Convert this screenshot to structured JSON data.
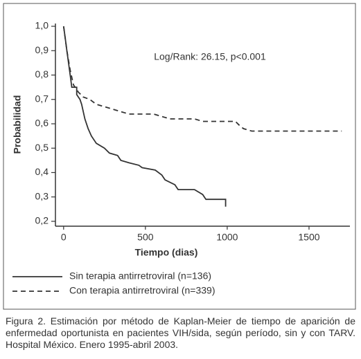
{
  "chart_data": {
    "type": "line",
    "annotation": "Log/Rank: 26.15, p<0.001",
    "xlabel": "Tiempo (dias)",
    "ylabel": "Probabilidad",
    "xlim": [
      -50,
      1750
    ],
    "xticks": [
      0,
      500,
      1000,
      1500
    ],
    "ylim": [
      0.18,
      1.0
    ],
    "yticks": [
      {
        "value": 0.2,
        "label": "0,2"
      },
      {
        "value": 0.3,
        "label": "0,3"
      },
      {
        "value": 0.4,
        "label": "0,4"
      },
      {
        "value": 0.5,
        "label": "0,5"
      },
      {
        "value": 0.6,
        "label": "0,6"
      },
      {
        "value": 0.7,
        "label": "0,7"
      },
      {
        "value": 0.8,
        "label": "0,8"
      },
      {
        "value": 0.9,
        "label": "0,9"
      },
      {
        "value": 1.0,
        "label": "1,0"
      }
    ],
    "series": [
      {
        "name": "Sin terapia antirretroviral (n=136)",
        "color": "#333333",
        "dashed": false,
        "x": [
          0,
          10,
          20,
          30,
          40,
          50,
          80,
          80,
          100,
          110,
          130,
          150,
          170,
          200,
          250,
          280,
          330,
          350,
          400,
          460,
          480,
          560,
          600,
          620,
          680,
          700,
          800,
          850,
          870,
          990,
          990
        ],
        "values": [
          1.0,
          0.95,
          0.9,
          0.85,
          0.8,
          0.75,
          0.75,
          0.72,
          0.7,
          0.68,
          0.62,
          0.58,
          0.55,
          0.52,
          0.5,
          0.48,
          0.47,
          0.45,
          0.44,
          0.43,
          0.42,
          0.41,
          0.39,
          0.37,
          0.35,
          0.33,
          0.33,
          0.31,
          0.29,
          0.29,
          0.26
        ]
      },
      {
        "name": "Con terapia antirretroviral (n=339)",
        "color": "#333333",
        "dashed": true,
        "x": [
          0,
          20,
          40,
          60,
          90,
          120,
          160,
          200,
          250,
          300,
          350,
          400,
          550,
          600,
          650,
          800,
          850,
          1050,
          1080,
          1100,
          1150,
          1700
        ],
        "values": [
          1.0,
          0.9,
          0.82,
          0.76,
          0.73,
          0.71,
          0.7,
          0.68,
          0.67,
          0.66,
          0.65,
          0.64,
          0.64,
          0.63,
          0.62,
          0.62,
          0.61,
          0.61,
          0.59,
          0.58,
          0.57,
          0.57
        ]
      }
    ],
    "caption": "Figura 2. Estimación por método de Kaplan-Meier de tiempo de aparición de enfermedad oportunista en pacientes VIH/sida, según período, sin y con TARV. Hospital México. Enero 1995-abril 2003."
  }
}
